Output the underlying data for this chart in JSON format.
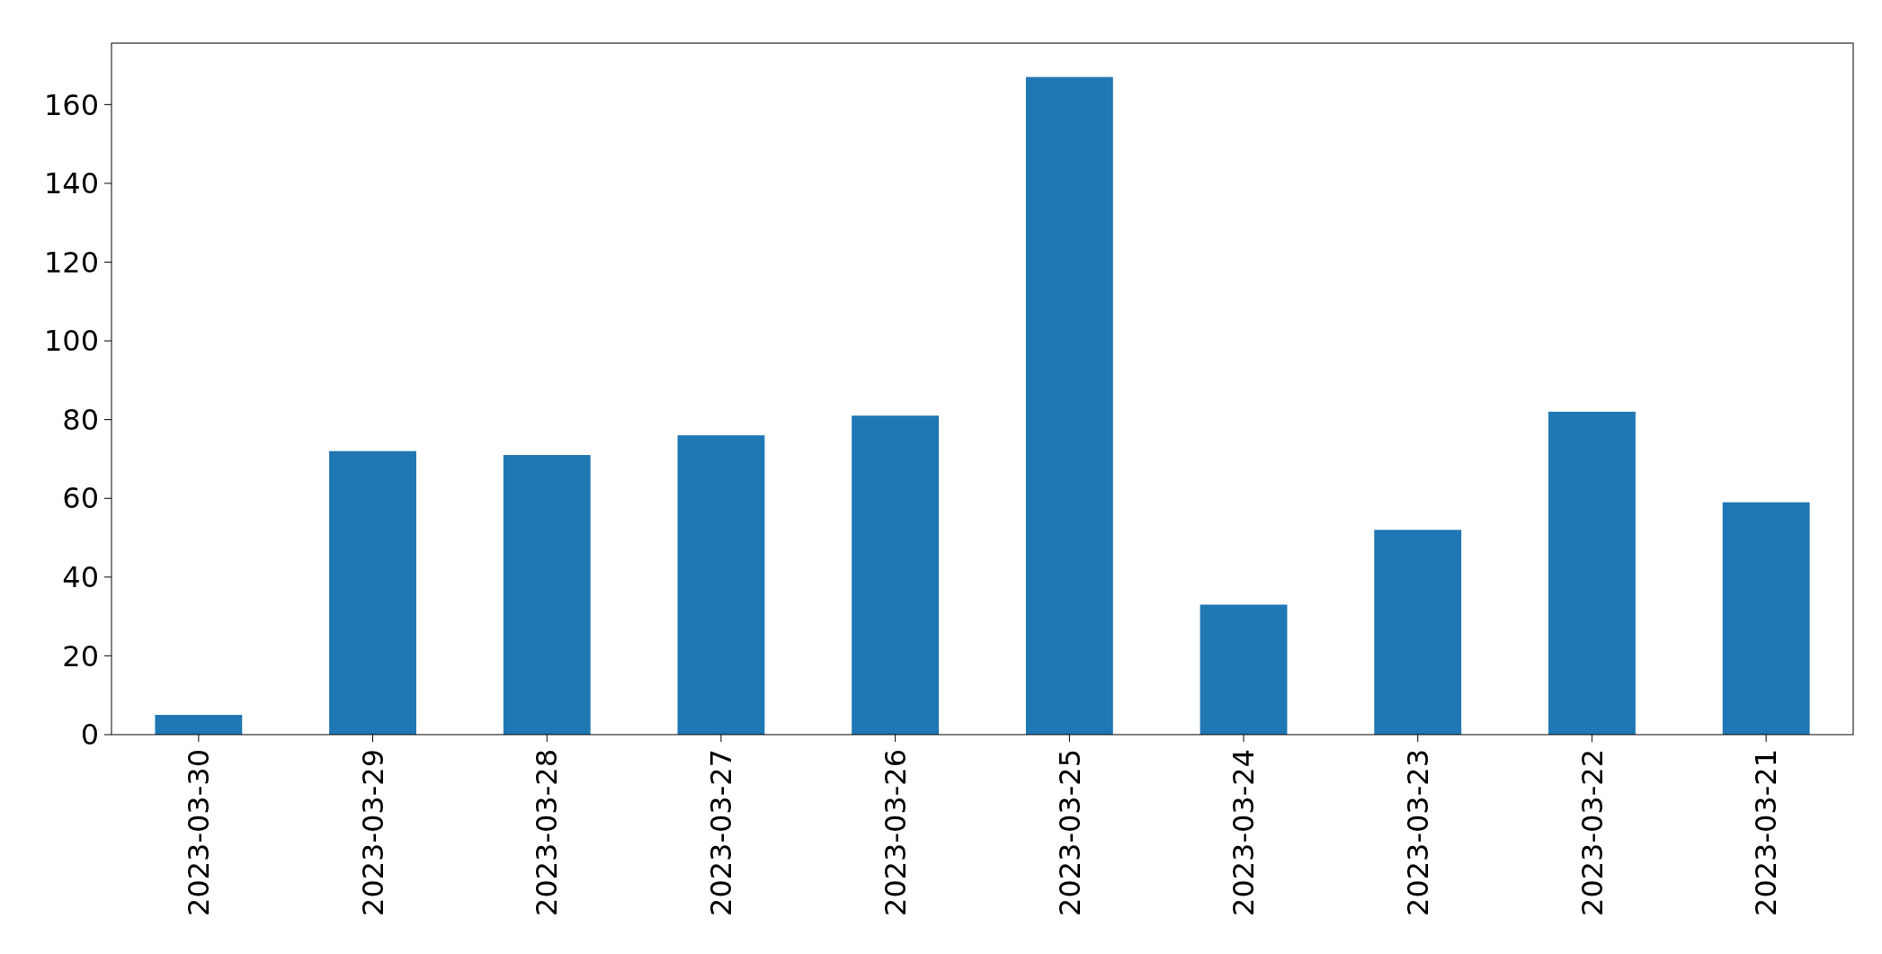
{
  "chart_data": {
    "type": "bar",
    "categories": [
      "2023-03-30",
      "2023-03-29",
      "2023-03-28",
      "2023-03-27",
      "2023-03-26",
      "2023-03-25",
      "2023-03-24",
      "2023-03-23",
      "2023-03-22",
      "2023-03-21"
    ],
    "values": [
      5,
      72,
      71,
      76,
      81,
      167,
      33,
      52,
      82,
      59
    ],
    "color": "#1f77b4",
    "ylim": [
      0,
      175.6
    ],
    "yticks": [
      0,
      20,
      40,
      60,
      80,
      100,
      120,
      140,
      160
    ],
    "grid": false
  }
}
